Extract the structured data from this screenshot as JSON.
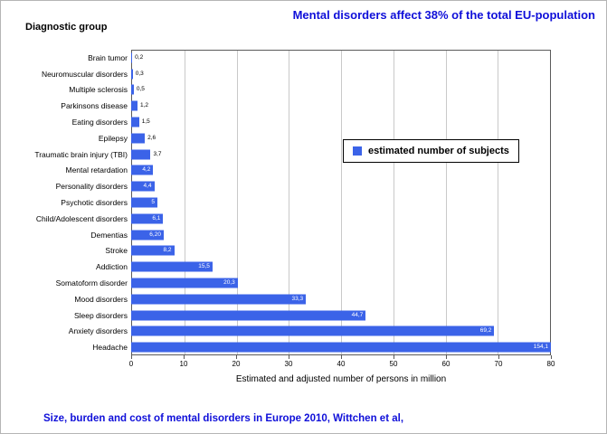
{
  "header": {
    "title": "Mental disorders affect 38% of the total EU-population",
    "diagnostic_group_label": "Diagnostic group"
  },
  "footer": {
    "caption": "Size, burden and cost of mental disorders in Europe 2010, Wittchen et al,"
  },
  "colors": {
    "title_blue": "#0f0fd9",
    "bar_blue": "#3b63e8",
    "grid_gray": "#c9c9c9"
  },
  "chart_data": {
    "type": "bar",
    "orientation": "horizontal",
    "title": "Mental disorders affect 38% of the total EU-population",
    "categories": [
      "Brain tumor",
      "Neuromuscular disorders",
      "Multiple sclerosis",
      "Parkinsons disease",
      "Eating disorders",
      "Epilepsy",
      "Traumatic brain injury (TBI)",
      "Mental retardation",
      "Personality disorders",
      "Psychotic disorders",
      "Child/Adolescent disorders",
      "Dementias",
      "Stroke",
      "Addiction",
      "Somatoform disorder",
      "Mood disorders",
      "Sleep disorders",
      "Anxiety disorders",
      "Headache"
    ],
    "values": [
      0.2,
      0.3,
      0.5,
      1.2,
      1.5,
      2.6,
      3.7,
      4.2,
      4.4,
      5,
      6.1,
      6.2,
      8.2,
      15.5,
      20.3,
      33.3,
      44.7,
      69.2,
      154.1
    ],
    "value_labels": [
      "0,2",
      "0,3",
      "0,5",
      "1,2",
      "1,5",
      "2,6",
      "3,7",
      "4,2",
      "4,4",
      "5",
      "6,1",
      "6,20",
      "8,2",
      "15,5",
      "20,3",
      "33,3",
      "44,7",
      "69,2",
      "154,1"
    ],
    "xlabel": "Estimated and adjusted number of persons in million",
    "ylabel": "Diagnostic group",
    "xlim": [
      0,
      80
    ],
    "xticks": [
      0,
      10,
      20,
      30,
      40,
      50,
      60,
      70,
      80
    ],
    "grid": true,
    "legend": [
      "estimated number of subjects"
    ],
    "legend_position": "middle-right"
  }
}
